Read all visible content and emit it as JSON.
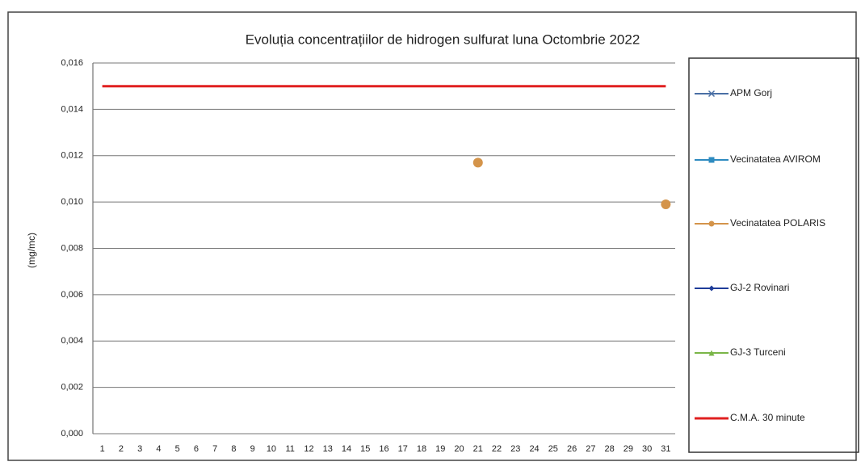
{
  "chart_data": {
    "type": "line",
    "title": "Evoluția concentrațiilor de hidrogen sulfurat luna Octombrie 2022",
    "y_label": "(mg/mc)",
    "categories": [
      "1",
      "2",
      "3",
      "4",
      "5",
      "6",
      "7",
      "8",
      "9",
      "10",
      "11",
      "12",
      "13",
      "14",
      "15",
      "16",
      "17",
      "18",
      "19",
      "20",
      "21",
      "22",
      "23",
      "24",
      "25",
      "26",
      "27",
      "28",
      "29",
      "30",
      "31"
    ],
    "series": [
      {
        "name": "APM Gorj",
        "color": "#4a6fa5",
        "marker": "x",
        "values": [
          null,
          null,
          null,
          null,
          null,
          null,
          null,
          null,
          null,
          null,
          null,
          null,
          null,
          null,
          null,
          null,
          null,
          null,
          null,
          null,
          null,
          null,
          null,
          null,
          null,
          null,
          null,
          null,
          null,
          null,
          null
        ]
      },
      {
        "name": "Vecinatatea AVIROM",
        "color": "#2e8bc0",
        "marker": "square",
        "values": [
          null,
          null,
          null,
          null,
          null,
          null,
          null,
          null,
          null,
          null,
          null,
          null,
          null,
          null,
          null,
          null,
          null,
          null,
          null,
          null,
          null,
          null,
          null,
          null,
          null,
          null,
          null,
          null,
          null,
          null,
          null
        ]
      },
      {
        "name": "Vecinatatea POLARIS",
        "color": "#d4944a",
        "marker": "circle",
        "values": [
          null,
          null,
          null,
          null,
          null,
          null,
          null,
          null,
          null,
          null,
          null,
          null,
          null,
          null,
          null,
          null,
          null,
          null,
          null,
          null,
          0.0117,
          null,
          null,
          null,
          null,
          null,
          null,
          null,
          null,
          null,
          0.0099
        ]
      },
      {
        "name": "GJ-2 Rovinari",
        "color": "#1f3d99",
        "marker": "diamond",
        "values": [
          null,
          null,
          null,
          null,
          null,
          null,
          null,
          null,
          null,
          null,
          null,
          null,
          null,
          null,
          null,
          null,
          null,
          null,
          null,
          null,
          null,
          null,
          null,
          null,
          null,
          null,
          null,
          null,
          null,
          null,
          null
        ]
      },
      {
        "name": "GJ-3 Turceni",
        "color": "#7ab648",
        "marker": "triangle",
        "values": [
          null,
          null,
          null,
          null,
          null,
          null,
          null,
          null,
          null,
          null,
          null,
          null,
          null,
          null,
          null,
          null,
          null,
          null,
          null,
          null,
          null,
          null,
          null,
          null,
          null,
          null,
          null,
          null,
          null,
          null,
          null
        ]
      },
      {
        "name": "C.M.A. 30 minute",
        "color": "#e02020",
        "marker": "none",
        "values": [
          0.015,
          0.015,
          0.015,
          0.015,
          0.015,
          0.015,
          0.015,
          0.015,
          0.015,
          0.015,
          0.015,
          0.015,
          0.015,
          0.015,
          0.015,
          0.015,
          0.015,
          0.015,
          0.015,
          0.015,
          0.015,
          0.015,
          0.015,
          0.015,
          0.015,
          0.015,
          0.015,
          0.015,
          0.015,
          0.015,
          0.015
        ]
      }
    ],
    "ylim": [
      0,
      0.016
    ],
    "yticks": [
      {
        "value": 0,
        "label": "0,000"
      },
      {
        "value": 0.002,
        "label": "0,002"
      },
      {
        "value": 0.004,
        "label": "0,004"
      },
      {
        "value": 0.006,
        "label": "0,006"
      },
      {
        "value": 0.008,
        "label": "0,008"
      },
      {
        "value": 0.01,
        "label": "0,010"
      },
      {
        "value": 0.012,
        "label": "0,012"
      },
      {
        "value": 0.014,
        "label": "0,014"
      },
      {
        "value": 0.016,
        "label": "0,016"
      }
    ],
    "grid": true,
    "legend": "right"
  }
}
